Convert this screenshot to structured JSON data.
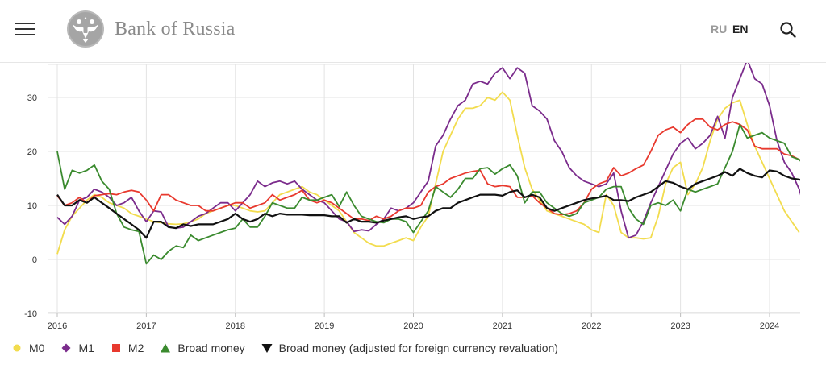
{
  "header": {
    "logo_text": "Bank of Russia",
    "lang_ru": "RU",
    "lang_en": "EN",
    "icons": [
      "menu-icon",
      "double-headed-eagle-icon",
      "search-icon"
    ]
  },
  "chart_data": {
    "type": "line",
    "title": "",
    "xlabel": "",
    "ylabel": "",
    "x_start": "2016-01",
    "x_end": "2024-04",
    "x_ticks": [
      "2016",
      "2017",
      "2018",
      "2019",
      "2020",
      "2021",
      "2022",
      "2023",
      "2024"
    ],
    "ylim": [
      -10,
      36
    ],
    "y_ticks": [
      "-10",
      "0",
      "10",
      "20",
      "30"
    ],
    "grid": "horizontal",
    "legend_position": "bottom",
    "series": [
      {
        "name": "M0",
        "color": "#f2dc4e",
        "marker": "circle",
        "values": [
          1.0,
          5.5,
          8.0,
          9.5,
          11.0,
          12.0,
          11.5,
          10.5,
          10.0,
          9.5,
          8.5,
          8.0,
          7.5,
          7.0,
          6.8,
          6.6,
          6.5,
          6.6,
          7.0,
          7.5,
          8.5,
          9.0,
          9.5,
          10.0,
          10.0,
          9.5,
          9.0,
          8.8,
          9.0,
          10.5,
          12.0,
          12.5,
          13.0,
          13.5,
          12.5,
          12.0,
          11.0,
          10.0,
          9.0,
          7.0,
          5.0,
          4.0,
          3.0,
          2.5,
          2.5,
          3.0,
          3.5,
          4.0,
          3.5,
          6.0,
          8.0,
          14.0,
          20.0,
          23.0,
          26.0,
          28.0,
          28.0,
          28.5,
          30.0,
          29.5,
          31.0,
          29.5,
          23.0,
          17.0,
          13.0,
          11.0,
          9.0,
          8.5,
          8.0,
          7.5,
          7.0,
          6.5,
          5.5,
          5.0,
          12.0,
          10.0,
          5.0,
          4.0,
          4.0,
          3.8,
          4.0,
          8.0,
          14.0,
          17.0,
          18.0,
          12.0,
          14.0,
          17.0,
          22.0,
          26.0,
          28.0,
          29.0,
          29.5,
          25.0,
          21.0,
          18.0,
          15.0,
          12.0,
          9.0,
          7.0,
          5.0
        ]
      },
      {
        "name": "M1",
        "color": "#7b2c8c",
        "marker": "diamond",
        "values": [
          7.8,
          6.5,
          8.0,
          11.0,
          11.5,
          13.0,
          12.5,
          11.5,
          10.0,
          10.5,
          11.5,
          9.0,
          7.0,
          9.0,
          8.8,
          6.0,
          5.8,
          6.0,
          7.0,
          8.0,
          8.5,
          9.5,
          10.5,
          10.5,
          9.0,
          10.5,
          12.0,
          14.5,
          13.5,
          14.2,
          14.5,
          14.0,
          14.5,
          13.0,
          12.0,
          11.0,
          10.5,
          9.0,
          7.5,
          7.0,
          5.2,
          5.5,
          5.3,
          6.5,
          7.5,
          9.5,
          9.0,
          9.5,
          10.5,
          12.5,
          14.5,
          21.0,
          23.0,
          26.0,
          28.5,
          29.5,
          32.5,
          33.0,
          32.5,
          34.5,
          35.5,
          33.5,
          35.5,
          34.5,
          28.5,
          27.5,
          26.0,
          22.0,
          20.0,
          17.0,
          15.5,
          14.5,
          14.0,
          13.5,
          14.0,
          16.0,
          9.0,
          4.0,
          4.5,
          7.0,
          10.5,
          13.5,
          16.5,
          19.5,
          21.5,
          22.5,
          20.5,
          21.5,
          23.0,
          26.5,
          22.5,
          30.0,
          33.5,
          37.0,
          33.5,
          32.5,
          28.5,
          22.0,
          18.0,
          16.0,
          13.0,
          8.2,
          8.3,
          8.8
        ]
      },
      {
        "name": "M2",
        "color": "#e8392e",
        "marker": "square",
        "values": [
          11.8,
          10.0,
          10.5,
          11.5,
          10.5,
          11.8,
          12.0,
          12.2,
          12.0,
          12.5,
          12.8,
          12.5,
          11.0,
          9.0,
          12.0,
          12.0,
          11.0,
          10.5,
          10.0,
          10.0,
          9.0,
          9.0,
          9.5,
          10.0,
          10.5,
          10.5,
          9.5,
          10.0,
          10.5,
          12.0,
          11.0,
          11.5,
          12.0,
          12.8,
          11.0,
          10.5,
          11.0,
          10.5,
          9.5,
          8.5,
          7.5,
          7.5,
          7.2,
          8.0,
          7.5,
          8.0,
          9.0,
          9.5,
          9.5,
          10.0,
          12.5,
          13.5,
          14.0,
          15.0,
          15.5,
          16.0,
          16.3,
          16.5,
          14.0,
          13.5,
          13.7,
          13.5,
          11.5,
          11.5,
          11.8,
          10.5,
          9.5,
          8.5,
          8.3,
          8.5,
          9.0,
          10.5,
          13.0,
          14.0,
          14.5,
          17.0,
          15.5,
          16.0,
          16.8,
          17.5,
          20.0,
          23.0,
          24.0,
          24.5,
          23.5,
          25.0,
          26.0,
          26.0,
          24.5,
          24.0,
          25.0,
          25.5,
          25.0,
          24.0,
          21.0,
          20.5,
          20.5,
          20.5,
          19.5,
          19.2,
          18.5,
          17.5
        ]
      },
      {
        "name": "Broad money",
        "color": "#3a8a2e",
        "marker": "triangle",
        "values": [
          20.0,
          13.0,
          16.5,
          16.0,
          16.5,
          17.5,
          14.5,
          13.0,
          8.5,
          6.0,
          5.5,
          5.2,
          -0.8,
          0.8,
          0.0,
          1.5,
          2.5,
          2.2,
          4.5,
          3.5,
          4.0,
          4.5,
          5.0,
          5.5,
          5.8,
          7.5,
          6.0,
          6.0,
          8.0,
          10.5,
          10.0,
          9.5,
          9.5,
          11.5,
          11.0,
          11.0,
          11.5,
          12.0,
          9.8,
          12.5,
          10.0,
          8.0,
          7.5,
          7.0,
          6.8,
          7.5,
          7.5,
          7.0,
          5.0,
          7.0,
          9.0,
          13.5,
          12.5,
          11.5,
          13.0,
          15.0,
          15.0,
          16.8,
          17.0,
          15.8,
          16.8,
          17.5,
          15.5,
          10.5,
          12.5,
          12.5,
          10.5,
          9.5,
          8.5,
          8.0,
          8.5,
          10.5,
          11.0,
          11.5,
          13.0,
          13.5,
          13.5,
          9.5,
          7.5,
          6.5,
          10.0,
          10.5,
          10.0,
          11.0,
          9.0,
          13.0,
          12.5,
          13.0,
          13.5,
          14.0,
          17.0,
          20.0,
          25.0,
          22.5,
          23.0,
          23.5,
          22.5,
          22.0,
          21.5,
          19.0,
          18.5,
          17.0,
          16.5
        ]
      },
      {
        "name": "Broad money (adjusted for foreign currency revaluation)",
        "color": "#111111",
        "marker": "triangle-down",
        "values": [
          12.0,
          10.0,
          10.0,
          11.0,
          10.5,
          11.5,
          10.5,
          9.5,
          8.5,
          7.5,
          6.5,
          5.5,
          4.0,
          7.0,
          7.0,
          6.0,
          5.8,
          6.5,
          6.2,
          6.5,
          6.5,
          6.5,
          7.0,
          7.5,
          8.5,
          7.5,
          7.0,
          7.5,
          8.5,
          8.0,
          8.5,
          8.3,
          8.3,
          8.3,
          8.2,
          8.2,
          8.2,
          8.0,
          8.0,
          6.8,
          7.5,
          7.0,
          7.0,
          6.8,
          7.2,
          7.5,
          7.8,
          8.0,
          7.5,
          7.8,
          8.0,
          9.0,
          9.5,
          9.5,
          10.5,
          11.0,
          11.5,
          12.0,
          12.0,
          12.0,
          11.8,
          12.5,
          12.8,
          11.5,
          12.0,
          11.5,
          9.5,
          9.0,
          9.5,
          10.0,
          10.5,
          11.0,
          11.3,
          11.5,
          11.8,
          11.0,
          11.0,
          10.8,
          11.5,
          12.0,
          12.5,
          13.5,
          14.5,
          14.2,
          13.5,
          13.0,
          14.0,
          14.5,
          15.0,
          15.5,
          16.2,
          15.5,
          16.8,
          16.0,
          15.5,
          15.2,
          16.5,
          16.3,
          15.5,
          15.0,
          14.8,
          14.3
        ]
      }
    ]
  }
}
